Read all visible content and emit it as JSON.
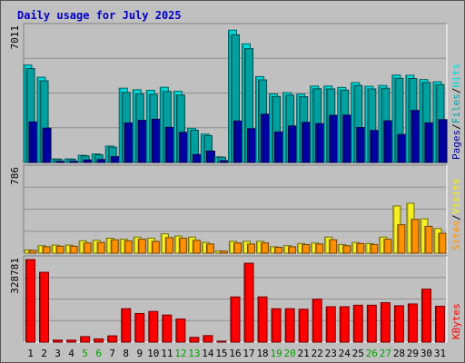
{
  "colors": {
    "background": "#c0c0c0",
    "plot_bg": "#c0c0c0",
    "title": "#0000cc",
    "hits": "#00d8d8",
    "files": "#00a0a0",
    "pages": "#0000a0",
    "visits": "#f5f020",
    "sites": "#ff9000",
    "kbytes": "#ff0000",
    "weekend_day": "#00a000",
    "weekday": "#000000"
  },
  "chart_data": {
    "type": "bar",
    "title": "Daily usage for July 2025",
    "categories": [
      "1",
      "2",
      "3",
      "4",
      "5",
      "6",
      "7",
      "8",
      "9",
      "10",
      "11",
      "12",
      "13",
      "14",
      "15",
      "16",
      "17",
      "18",
      "19",
      "20",
      "21",
      "22",
      "23",
      "24",
      "25",
      "26",
      "27",
      "28",
      "29",
      "30",
      "31"
    ],
    "weekend_days": [
      "5",
      "6",
      "12",
      "13",
      "19",
      "20",
      "26",
      "27"
    ],
    "panels": [
      {
        "name": "hits-files-pages",
        "ymax_label": "7011",
        "ymax": 7011,
        "legend": [
          {
            "label": "Hits",
            "color_key": "hits"
          },
          {
            "label": "/",
            "color_key": "weekday"
          },
          {
            "label": "Files",
            "color_key": "files"
          },
          {
            "label": "/",
            "color_key": "weekday"
          },
          {
            "label": "Pages",
            "color_key": "pages"
          }
        ],
        "series": [
          {
            "name": "Hits",
            "color_key": "hits",
            "values": [
              5050,
              4420,
              180,
              180,
              370,
              440,
              850,
              3850,
              3770,
              3740,
              3900,
              3690,
              1770,
              1470,
              290,
              6860,
              6150,
              4450,
              3550,
              3620,
              3540,
              3960,
              3960,
              3890,
              4140,
              3950,
              3990,
              4530,
              4520,
              4300,
              4180
            ]
          },
          {
            "name": "Files",
            "color_key": "files",
            "values": [
              4870,
              4230,
              170,
              170,
              340,
              400,
              790,
              3630,
              3560,
              3530,
              3680,
              3490,
              1670,
              1390,
              270,
              6620,
              5900,
              4280,
              3420,
              3490,
              3410,
              3820,
              3810,
              3750,
              3990,
              3810,
              3850,
              4360,
              4350,
              4150,
              4030
            ]
          },
          {
            "name": "Pages",
            "color_key": "pages",
            "values": [
              2100,
              1780,
              60,
              60,
              130,
              150,
              300,
              2050,
              2180,
              2240,
              1820,
              1560,
              410,
              590,
              90,
              2150,
              1750,
              2500,
              1580,
              1890,
              2080,
              2010,
              2440,
              2450,
              1810,
              1660,
              2160,
              1450,
              2700,
              2050,
              2220
            ]
          }
        ]
      },
      {
        "name": "visits-sites",
        "ymax_label": "786",
        "ymax": 786,
        "legend": [
          {
            "label": "Visits",
            "color_key": "visits"
          },
          {
            "label": "/",
            "color_key": "weekday"
          },
          {
            "label": "Sites",
            "color_key": "sites"
          }
        ],
        "series": [
          {
            "name": "Visits",
            "color_key": "visits",
            "values": [
              30,
              70,
              75,
              75,
              115,
              120,
              140,
              130,
              150,
              140,
              180,
              160,
              150,
              100,
              20,
              110,
              110,
              110,
              60,
              70,
              90,
              95,
              150,
              80,
              100,
              90,
              150,
              440,
              465,
              320,
              230
            ]
          },
          {
            "name": "Sites",
            "color_key": "sites",
            "values": [
              25,
              60,
              65,
              65,
              95,
              100,
              125,
              115,
              130,
              110,
              145,
              140,
              120,
              85,
              18,
              95,
              85,
              95,
              55,
              60,
              80,
              85,
              125,
              70,
              90,
              80,
              130,
              265,
              315,
              250,
              185
            ]
          }
        ]
      },
      {
        "name": "kbytes",
        "ymax_label": "328781",
        "ymax": 328781,
        "legend": [
          {
            "label": "KBytes",
            "color_key": "kbytes"
          }
        ],
        "series": [
          {
            "name": "KBytes",
            "color_key": "kbytes",
            "values": [
              328781,
              278000,
              8000,
              8000,
              22000,
              13000,
              25000,
              133000,
              114000,
              122000,
              108000,
              92000,
              19000,
              26000,
              4000,
              180000,
              314000,
              180000,
              133000,
              133000,
              131000,
              171000,
              141000,
              141000,
              147000,
              147000,
              157000,
              145000,
              152000,
              211000,
              143000
            ]
          }
        ]
      }
    ],
    "grid": true
  }
}
